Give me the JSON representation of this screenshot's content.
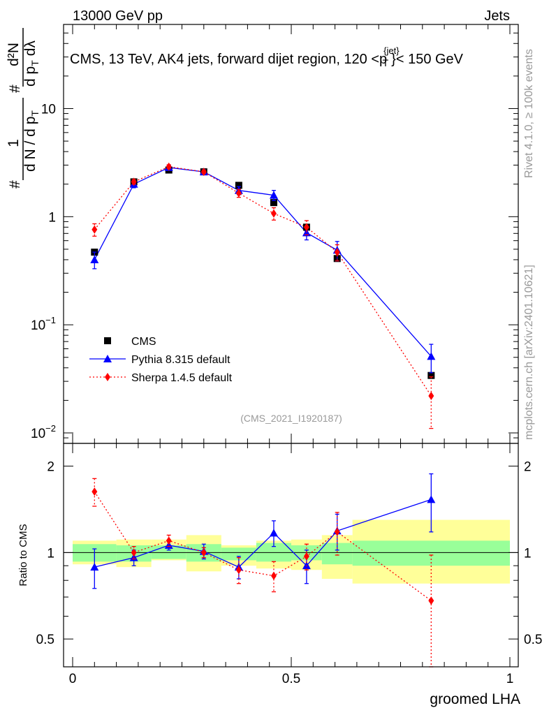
{
  "header": {
    "left": "13000 GeV pp",
    "right": "Jets"
  },
  "side_texts": {
    "rivet": "Rivet 4.1.0, ≥ 100k events",
    "mcplots": "mcplots.cern.ch [arXiv:2401.10621]"
  },
  "chart_data": {
    "type": "scatter",
    "title": "CMS, 13 TeV, AK4 jets, forward dijet region, 120 <p",
    "title_sup": "{jet}",
    "title_sub": "T",
    "title_tail": "}< 150 GeV",
    "watermark": "(CMS_2021_I1920187)",
    "ylabel_top": {
      "hash1": "#",
      "one": "1",
      "denom": "d N / d p",
      "denom_sub": "T",
      "hash2": "#",
      "num2": "d²N",
      "den2": "d p",
      "den2_sub": "T",
      "den2_tail": "dλ"
    },
    "ylabel_bottom": "Ratio to CMS",
    "xlabel": "groomed LHA",
    "xlim": [
      0,
      1
    ],
    "ylim_top": [
      0.008,
      60
    ],
    "ylim_bottom": [
      0.4,
      2.4
    ],
    "x_ticks": [
      {
        "v": 0,
        "label": "0"
      },
      {
        "v": 0.5,
        "label": "0.5"
      },
      {
        "v": 1,
        "label": "1"
      }
    ],
    "y_ticks_top": [
      {
        "v": 10,
        "base": "10",
        "exp": ""
      },
      {
        "v": 1,
        "base": "1",
        "exp": ""
      },
      {
        "v": 0.1,
        "base": "10",
        "exp": "−1"
      },
      {
        "v": 0.01,
        "base": "10",
        "exp": "−2"
      }
    ],
    "y_ticks_bottom": [
      {
        "v": 2,
        "label": "2"
      },
      {
        "v": 1,
        "label": "1"
      },
      {
        "v": 0.5,
        "label": "0.5"
      }
    ],
    "bins": [
      0,
      0.1,
      0.18,
      0.26,
      0.34,
      0.42,
      0.5,
      0.57,
      0.64,
      1.0
    ],
    "band_inner": [
      [
        0.93,
        1.07
      ],
      [
        0.93,
        1.06
      ],
      [
        0.95,
        1.06
      ],
      [
        0.93,
        1.07
      ],
      [
        0.94,
        1.04
      ],
      [
        0.93,
        1.08
      ],
      [
        0.94,
        1.06
      ],
      [
        0.91,
        1.08
      ],
      [
        0.9,
        1.1
      ]
    ],
    "band_outer": [
      [
        0.91,
        1.1
      ],
      [
        0.89,
        1.11
      ],
      [
        0.94,
        1.11
      ],
      [
        0.86,
        1.15
      ],
      [
        0.9,
        1.06
      ],
      [
        0.88,
        1.1
      ],
      [
        0.87,
        1.11
      ],
      [
        0.81,
        1.15
      ],
      [
        0.78,
        1.3
      ]
    ],
    "legend": [
      {
        "name": "CMS",
        "color": "#000000",
        "marker": "square"
      },
      {
        "name": "Pythia 8.315 default",
        "color": "#0000ff",
        "marker": "triangle"
      },
      {
        "name": "Sherpa 1.4.5 default",
        "color": "#ff0000",
        "marker": "diamond"
      }
    ],
    "series": [
      {
        "name": "CMS",
        "color": "#000000",
        "marker": "square",
        "x": [
          0.05,
          0.14,
          0.22,
          0.3,
          0.38,
          0.46,
          0.535,
          0.605,
          0.82
        ],
        "y": [
          0.47,
          2.1,
          2.7,
          2.6,
          1.95,
          1.35,
          0.8,
          0.41,
          0.034
        ]
      },
      {
        "name": "Pythia 8.315 default",
        "color": "#0000ff",
        "marker": "triangle",
        "line": "solid",
        "x": [
          0.05,
          0.14,
          0.22,
          0.3,
          0.38,
          0.46,
          0.535,
          0.605,
          0.82
        ],
        "y": [
          0.4,
          2.0,
          2.85,
          2.6,
          1.75,
          1.58,
          0.71,
          0.49,
          0.051
        ],
        "yerr": [
          0.07,
          0.15,
          0.15,
          0.12,
          0.15,
          0.17,
          0.1,
          0.1,
          0.015
        ],
        "ratio": [
          0.89,
          0.96,
          1.06,
          1.01,
          0.89,
          1.17,
          0.9,
          1.19,
          1.53
        ],
        "ratio_err": [
          0.14,
          0.06,
          0.04,
          0.06,
          0.08,
          0.12,
          0.12,
          0.17,
          0.35
        ]
      },
      {
        "name": "Sherpa 1.4.5 default",
        "color": "#ff0000",
        "marker": "diamond",
        "line": "dotted",
        "x": [
          0.05,
          0.14,
          0.22,
          0.3,
          0.38,
          0.46,
          0.535,
          0.605,
          0.82
        ],
        "y": [
          0.76,
          2.1,
          2.9,
          2.6,
          1.65,
          1.07,
          0.8,
          0.47,
          0.022
        ],
        "yerr": [
          0.1,
          0.1,
          0.12,
          0.1,
          0.14,
          0.14,
          0.12,
          0.08,
          0.011
        ],
        "ratio": [
          1.63,
          1.0,
          1.1,
          1.0,
          0.87,
          0.83,
          0.97,
          1.18,
          0.68
        ],
        "ratio_err": [
          0.18,
          0.05,
          0.05,
          0.04,
          0.09,
          0.1,
          0.1,
          0.2,
          0.3
        ]
      }
    ]
  }
}
